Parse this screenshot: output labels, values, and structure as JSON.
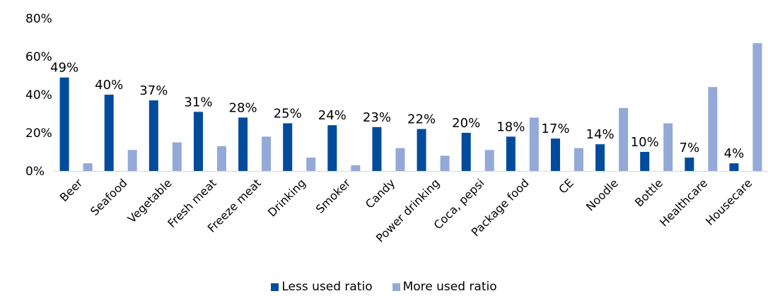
{
  "chart_data": {
    "type": "bar",
    "categories": [
      "Beer",
      "Seafood",
      "Vegetable",
      "Fresh meat",
      "Freeze meat",
      "Drinking",
      "Smoker",
      "Candy",
      "Power drinking",
      "Coca, pepsi",
      "Package food",
      "CE",
      "Noodle",
      "Bottle",
      "Healthcare",
      "Housecare"
    ],
    "series": [
      {
        "name": "Less used ratio",
        "values": [
          49,
          40,
          37,
          31,
          28,
          25,
          24,
          23,
          22,
          20,
          18,
          17,
          14,
          10,
          7,
          4
        ],
        "color": "#004b9b"
      },
      {
        "name": "More used ratio",
        "values": [
          4,
          11,
          15,
          13,
          18,
          7,
          3,
          12,
          8,
          11,
          28,
          12,
          33,
          25,
          44,
          67
        ],
        "color": "#94a9d8"
      }
    ],
    "data_labels": [
      "49%",
      "40%",
      "37%",
      "31%",
      "28%",
      "25%",
      "24%",
      "23%",
      "22%",
      "20%",
      "18%",
      "17%",
      "14%",
      "10%",
      "7%",
      "4%"
    ],
    "yticks": [
      "0%",
      "20%",
      "40%",
      "60%",
      "80%"
    ],
    "ylim": [
      0,
      80
    ],
    "legend_position": "bottom",
    "grid": false
  }
}
